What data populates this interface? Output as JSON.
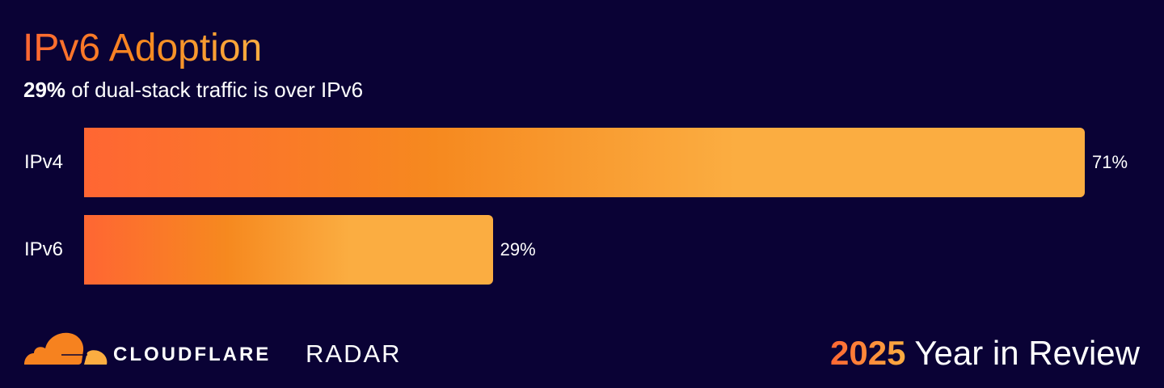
{
  "header": {
    "title": "IPv6 Adoption",
    "subtitle_bold": "29%",
    "subtitle_rest": " of dual-stack traffic is over IPv6"
  },
  "chart_data": {
    "type": "bar",
    "orientation": "horizontal",
    "categories": [
      "IPv4",
      "IPv6"
    ],
    "values": [
      71,
      29
    ],
    "value_labels": [
      "71%",
      "29%"
    ],
    "unit": "%",
    "xlim": [
      0,
      71
    ],
    "grid": false,
    "colors": {
      "gradient_start": "#ff6633",
      "gradient_mid": "#f6891f",
      "gradient_end": "#fbad41"
    }
  },
  "footer": {
    "brand": "CLOUDFLARE",
    "product": "RADAR",
    "year": "2025",
    "tagline": " Year in Review"
  },
  "colors": {
    "background": "#0a0235",
    "accent": "#f6891f"
  }
}
